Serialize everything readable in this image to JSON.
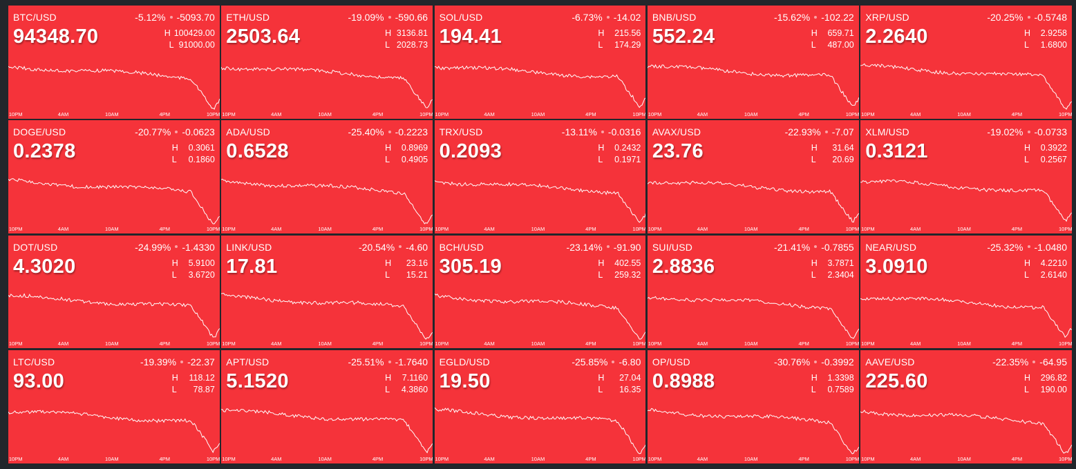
{
  "colors": {
    "background": "#22262b",
    "tile": "#f5333a",
    "line": "#ffffff"
  },
  "time_axis": [
    "10PM",
    "4AM",
    "10AM",
    "4PM",
    "10PM"
  ],
  "tiles": [
    {
      "pair": "BTC/USD",
      "change_pct": "-5.12%",
      "change_abs": "-5093.70",
      "price": "94348.70",
      "high_label": "H",
      "high": "100429.00",
      "low_label": "L",
      "low": "91000.00"
    },
    {
      "pair": "ETH/USD",
      "change_pct": "-19.09%",
      "change_abs": "-590.66",
      "price": "2503.64",
      "high_label": "H",
      "high": "3136.81",
      "low_label": "L",
      "low": "2028.73"
    },
    {
      "pair": "SOL/USD",
      "change_pct": "-6.73%",
      "change_abs": "-14.02",
      "price": "194.41",
      "high_label": "H",
      "high": "215.56",
      "low_label": "L",
      "low": "174.29"
    },
    {
      "pair": "BNB/USD",
      "change_pct": "-15.62%",
      "change_abs": "-102.22",
      "price": "552.24",
      "high_label": "H",
      "high": "659.71",
      "low_label": "L",
      "low": "487.00"
    },
    {
      "pair": "XRP/USD",
      "change_pct": "-20.25%",
      "change_abs": "-0.5748",
      "price": "2.2640",
      "high_label": "H",
      "high": "2.9258",
      "low_label": "L",
      "low": "1.6800"
    },
    {
      "pair": "DOGE/USD",
      "change_pct": "-20.77%",
      "change_abs": "-0.0623",
      "price": "0.2378",
      "high_label": "H",
      "high": "0.3061",
      "low_label": "L",
      "low": "0.1860"
    },
    {
      "pair": "ADA/USD",
      "change_pct": "-25.40%",
      "change_abs": "-0.2223",
      "price": "0.6528",
      "high_label": "H",
      "high": "0.8969",
      "low_label": "L",
      "low": "0.4905"
    },
    {
      "pair": "TRX/USD",
      "change_pct": "-13.11%",
      "change_abs": "-0.0316",
      "price": "0.2093",
      "high_label": "H",
      "high": "0.2432",
      "low_label": "L",
      "low": "0.1971"
    },
    {
      "pair": "AVAX/USD",
      "change_pct": "-22.93%",
      "change_abs": "-7.07",
      "price": "23.76",
      "high_label": "H",
      "high": "31.64",
      "low_label": "L",
      "low": "20.69"
    },
    {
      "pair": "XLM/USD",
      "change_pct": "-19.02%",
      "change_abs": "-0.0733",
      "price": "0.3121",
      "high_label": "H",
      "high": "0.3922",
      "low_label": "L",
      "low": "0.2567"
    },
    {
      "pair": "DOT/USD",
      "change_pct": "-24.99%",
      "change_abs": "-1.4330",
      "price": "4.3020",
      "high_label": "H",
      "high": "5.9100",
      "low_label": "L",
      "low": "3.6720"
    },
    {
      "pair": "LINK/USD",
      "change_pct": "-20.54%",
      "change_abs": "-4.60",
      "price": "17.81",
      "high_label": "H",
      "high": "23.16",
      "low_label": "L",
      "low": "15.21"
    },
    {
      "pair": "BCH/USD",
      "change_pct": "-23.14%",
      "change_abs": "-91.90",
      "price": "305.19",
      "high_label": "H",
      "high": "402.55",
      "low_label": "L",
      "low": "259.32"
    },
    {
      "pair": "SUI/USD",
      "change_pct": "-21.41%",
      "change_abs": "-0.7855",
      "price": "2.8836",
      "high_label": "H",
      "high": "3.7871",
      "low_label": "L",
      "low": "2.3404"
    },
    {
      "pair": "NEAR/USD",
      "change_pct": "-25.32%",
      "change_abs": "-1.0480",
      "price": "3.0910",
      "high_label": "H",
      "high": "4.2210",
      "low_label": "L",
      "low": "2.6140"
    },
    {
      "pair": "LTC/USD",
      "change_pct": "-19.39%",
      "change_abs": "-22.37",
      "price": "93.00",
      "high_label": "H",
      "high": "118.12",
      "low_label": "L",
      "low": "78.87"
    },
    {
      "pair": "APT/USD",
      "change_pct": "-25.51%",
      "change_abs": "-1.7640",
      "price": "5.1520",
      "high_label": "H",
      "high": "7.1160",
      "low_label": "L",
      "low": "4.3860"
    },
    {
      "pair": "EGLD/USD",
      "change_pct": "-25.85%",
      "change_abs": "-6.80",
      "price": "19.50",
      "high_label": "H",
      "high": "27.04",
      "low_label": "L",
      "low": "16.35"
    },
    {
      "pair": "OP/USD",
      "change_pct": "-30.76%",
      "change_abs": "-0.3992",
      "price": "0.8988",
      "high_label": "H",
      "high": "1.3398",
      "low_label": "L",
      "low": "0.7589"
    },
    {
      "pair": "AAVE/USD",
      "change_pct": "-22.35%",
      "change_abs": "-64.95",
      "price": "225.60",
      "high_label": "H",
      "high": "296.82",
      "low_label": "L",
      "low": "190.00"
    }
  ]
}
